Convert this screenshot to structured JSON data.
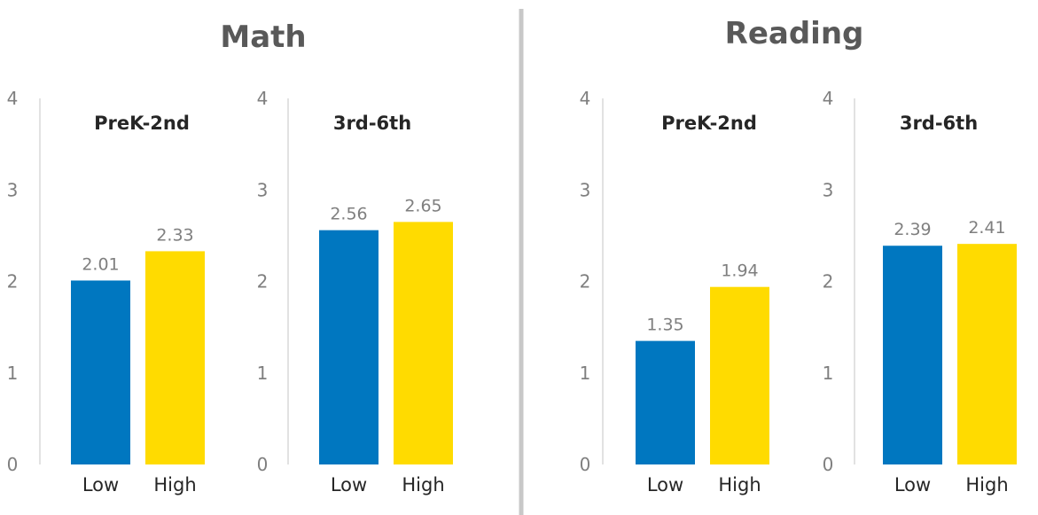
{
  "sections": [
    {
      "title": "Math"
    },
    {
      "title": "Reading"
    }
  ],
  "colors": {
    "Low": "#0077C0",
    "High": "#FFDB00",
    "axis": "#d9d9d9",
    "divider": "#c8c8c8"
  },
  "chart_data": [
    {
      "type": "bar",
      "section": "Math",
      "title": "PreK-2nd",
      "categories": [
        "Low",
        "High"
      ],
      "values": [
        2.01,
        2.33
      ],
      "value_labels": [
        "2.01",
        "2.33"
      ],
      "ylim": [
        0,
        4
      ],
      "yticks": [
        "0",
        "1",
        "2",
        "3",
        "4"
      ]
    },
    {
      "type": "bar",
      "section": "Math",
      "title": "3rd-6th",
      "categories": [
        "Low",
        "High"
      ],
      "values": [
        2.56,
        2.65
      ],
      "value_labels": [
        "2.56",
        "2.65"
      ],
      "ylim": [
        0,
        4
      ],
      "yticks": [
        "0",
        "1",
        "2",
        "3",
        "4"
      ]
    },
    {
      "type": "bar",
      "section": "Reading",
      "title": "PreK-2nd",
      "categories": [
        "Low",
        "High"
      ],
      "values": [
        1.35,
        1.94
      ],
      "value_labels": [
        "1.35",
        "1.94"
      ],
      "ylim": [
        0,
        4
      ],
      "yticks": [
        "0",
        "1",
        "2",
        "3",
        "4"
      ]
    },
    {
      "type": "bar",
      "section": "Reading",
      "title": "3rd-6th",
      "categories": [
        "Low",
        "High"
      ],
      "values": [
        2.39,
        2.41
      ],
      "value_labels": [
        "2.39",
        "2.41"
      ],
      "ylim": [
        0,
        4
      ],
      "yticks": [
        "0",
        "1",
        "2",
        "3",
        "4"
      ]
    }
  ]
}
